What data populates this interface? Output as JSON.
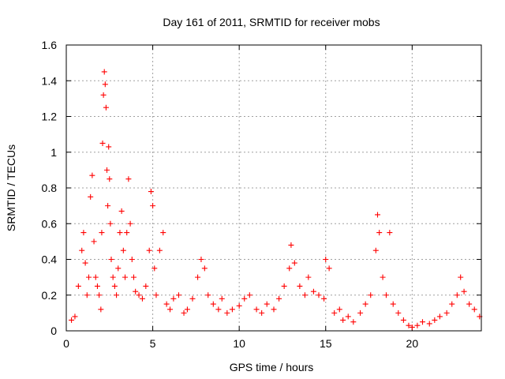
{
  "chart_data": {
    "type": "scatter",
    "title": "Day 161 of 2011, SRMTID for receiver mobs",
    "xlabel": "GPS time / hours",
    "ylabel": "SRMTID / TECUs",
    "xlim": [
      0,
      24
    ],
    "ylim": [
      0,
      1.6
    ],
    "x_ticks": [
      "0",
      "5",
      "10",
      "15",
      "20"
    ],
    "x_tick_values": [
      0,
      5,
      10,
      15,
      20
    ],
    "y_ticks": [
      "0",
      "0.2",
      "0.4",
      "0.6",
      "0.8",
      "1",
      "1.2",
      "1.4",
      "1.6"
    ],
    "y_tick_values": [
      0,
      0.2,
      0.4,
      0.6,
      0.8,
      1.0,
      1.2,
      1.4,
      1.6
    ],
    "grid": true,
    "legend": "none",
    "marker": "+",
    "color": "#ff0000",
    "series": [
      {
        "name": "mobs",
        "x": [
          0.3,
          0.5,
          0.7,
          0.9,
          1.0,
          1.1,
          1.2,
          1.3,
          1.4,
          1.5,
          1.6,
          1.7,
          1.8,
          1.9,
          2.0,
          2.05,
          2.1,
          2.15,
          2.2,
          2.25,
          2.3,
          2.35,
          2.4,
          2.45,
          2.5,
          2.55,
          2.6,
          2.7,
          2.8,
          2.9,
          3.0,
          3.1,
          3.2,
          3.3,
          3.4,
          3.5,
          3.6,
          3.7,
          3.8,
          3.9,
          4.0,
          4.2,
          4.4,
          4.6,
          4.8,
          4.9,
          5.0,
          5.1,
          5.2,
          5.4,
          5.6,
          5.8,
          6.0,
          6.2,
          6.5,
          6.8,
          7.0,
          7.3,
          7.6,
          7.8,
          8.0,
          8.2,
          8.5,
          8.8,
          9.0,
          9.3,
          9.6,
          10.0,
          10.3,
          10.6,
          11.0,
          11.3,
          11.6,
          12.0,
          12.3,
          12.6,
          12.9,
          13.0,
          13.2,
          13.5,
          13.8,
          14.0,
          14.3,
          14.6,
          14.9,
          15.0,
          15.2,
          15.5,
          15.8,
          16.0,
          16.3,
          16.6,
          17.0,
          17.3,
          17.6,
          17.9,
          18.0,
          18.1,
          18.3,
          18.5,
          18.7,
          18.9,
          19.2,
          19.5,
          19.8,
          20.0,
          20.3,
          20.6,
          21.0,
          21.3,
          21.6,
          22.0,
          22.3,
          22.6,
          22.8,
          23.0,
          23.3,
          23.6,
          23.9
        ],
        "y": [
          0.06,
          0.08,
          0.25,
          0.45,
          0.55,
          0.38,
          0.2,
          0.3,
          0.75,
          0.87,
          0.5,
          0.3,
          0.25,
          0.2,
          0.12,
          0.55,
          1.05,
          1.32,
          1.45,
          1.38,
          1.25,
          0.9,
          0.7,
          1.03,
          0.85,
          0.6,
          0.4,
          0.3,
          0.25,
          0.2,
          0.35,
          0.55,
          0.67,
          0.45,
          0.3,
          0.55,
          0.85,
          0.6,
          0.4,
          0.3,
          0.22,
          0.2,
          0.18,
          0.25,
          0.45,
          0.78,
          0.7,
          0.35,
          0.2,
          0.45,
          0.55,
          0.15,
          0.12,
          0.18,
          0.2,
          0.1,
          0.12,
          0.18,
          0.3,
          0.4,
          0.35,
          0.2,
          0.15,
          0.12,
          0.18,
          0.1,
          0.12,
          0.14,
          0.18,
          0.2,
          0.12,
          0.1,
          0.15,
          0.12,
          0.18,
          0.25,
          0.35,
          0.48,
          0.38,
          0.25,
          0.2,
          0.3,
          0.22,
          0.2,
          0.18,
          0.4,
          0.35,
          0.1,
          0.12,
          0.06,
          0.08,
          0.05,
          0.1,
          0.15,
          0.2,
          0.45,
          0.65,
          0.55,
          0.3,
          0.2,
          0.55,
          0.15,
          0.1,
          0.06,
          0.03,
          0.02,
          0.03,
          0.05,
          0.04,
          0.06,
          0.08,
          0.1,
          0.15,
          0.2,
          0.3,
          0.22,
          0.15,
          0.12,
          0.08
        ]
      }
    ]
  }
}
